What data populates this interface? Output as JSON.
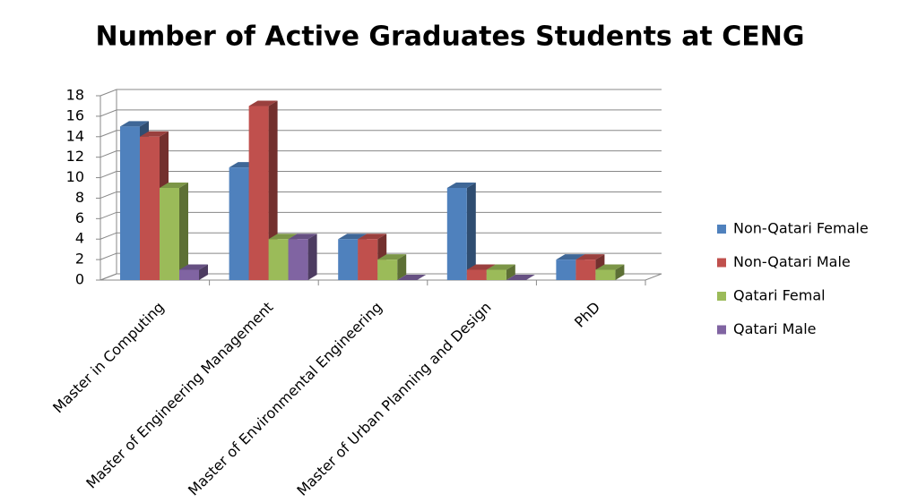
{
  "chart_data": {
    "type": "bar3d",
    "title": "Number of Active Graduates Students at CENG",
    "categories": [
      "Master in Computing",
      "Master of Engineering Management",
      "Master of Environmental Engineering",
      "Master of Urban Planning and Design",
      "PhD"
    ],
    "series": [
      {
        "name": "Non-Qatari Female",
        "color": "#4f81bd",
        "values": [
          15,
          11,
          4,
          9,
          2
        ]
      },
      {
        "name": "Non-Qatari Male",
        "color": "#c0504d",
        "values": [
          14,
          17,
          4,
          1,
          2
        ]
      },
      {
        "name": "Qatari Femal",
        "color": "#9bbb59",
        "values": [
          9,
          4,
          2,
          1,
          1
        ]
      },
      {
        "name": "Qatari Male",
        "color": "#8064a2",
        "values": [
          1,
          4,
          0,
          0,
          null
        ]
      }
    ],
    "ylim": [
      0,
      18
    ],
    "yticks": [
      0,
      2,
      4,
      6,
      8,
      10,
      12,
      14,
      16,
      18
    ],
    "grid": true,
    "legend": "right"
  }
}
